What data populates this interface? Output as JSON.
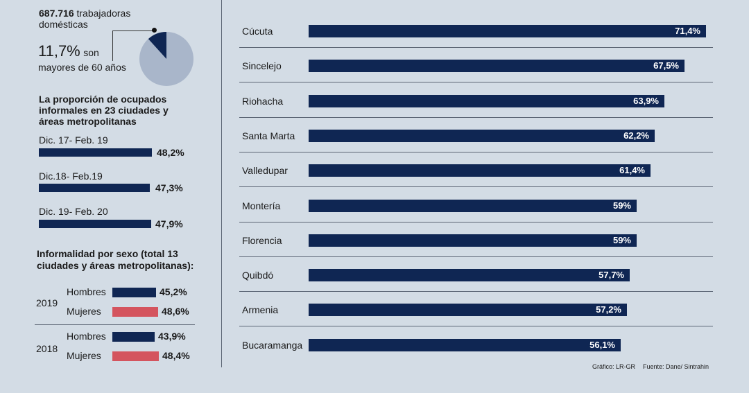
{
  "header": {
    "count": "687.716",
    "count_suffix": "trabajadoras",
    "count_line2": "domésticas",
    "percent": "11,7%",
    "percent_suffix": "son",
    "percent_line2": "mayores de 60 años"
  },
  "pie": {
    "slice_value": 11.7,
    "slice_color": "#0f2653",
    "rest_color": "#a9b6ca"
  },
  "informal": {
    "title_line1": "La proporción de ocupados",
    "title_line2": "informales en 23 ciudades y",
    "title_line3": "áreas metropolitanas",
    "items": [
      {
        "label": "Dic. 17- Feb. 19",
        "value": 48.2,
        "display": "48,2%"
      },
      {
        "label": "Dic.18- Feb.19",
        "value": 47.3,
        "display": "47,3%"
      },
      {
        "label": "Dic. 19- Feb. 20",
        "value": 47.9,
        "display": "47,9%"
      }
    ]
  },
  "sexo": {
    "title_line1": "Informalidad por sexo (total 13",
    "title_line2": "ciudades y áreas metropolitanas):",
    "groups": [
      {
        "year": "2019",
        "rows": [
          {
            "label": "Hombres",
            "value": 45.2,
            "display": "45,2%"
          },
          {
            "label": "Mujeres",
            "value": 48.6,
            "display": "48,6%"
          }
        ]
      },
      {
        "year": "2018",
        "rows": [
          {
            "label": "Hombres",
            "value": 43.9,
            "display": "43,9%"
          },
          {
            "label": "Mujeres",
            "value": 48.4,
            "display": "48,4%"
          }
        ]
      }
    ]
  },
  "colors": {
    "navy": "#0f2653",
    "red": "#d4545e",
    "background": "#d3dce5"
  },
  "chart_data": {
    "type": "bar",
    "orientation": "horizontal",
    "categories": [
      "Cúcuta",
      "Sincelejo",
      "Riohacha",
      "Santa Marta",
      "Valledupar",
      "Montería",
      "Florencia",
      "Quibdó",
      "Armenia",
      "Bucaramanga"
    ],
    "values": [
      71.4,
      67.5,
      63.9,
      62.2,
      61.4,
      59,
      59,
      57.7,
      57.2,
      56.1
    ],
    "labels": [
      "71,4%",
      "67,5%",
      "63,9%",
      "62,2%",
      "61,4%",
      "59%",
      "59%",
      "57,7%",
      "57,2%",
      "56,1%"
    ],
    "title": "",
    "xlabel": "",
    "ylabel": "",
    "grid": false
  },
  "footer": {
    "grafico": "Gráfico: LR-GR",
    "fuente": "Fuente: Dane/ Sintrahin"
  }
}
